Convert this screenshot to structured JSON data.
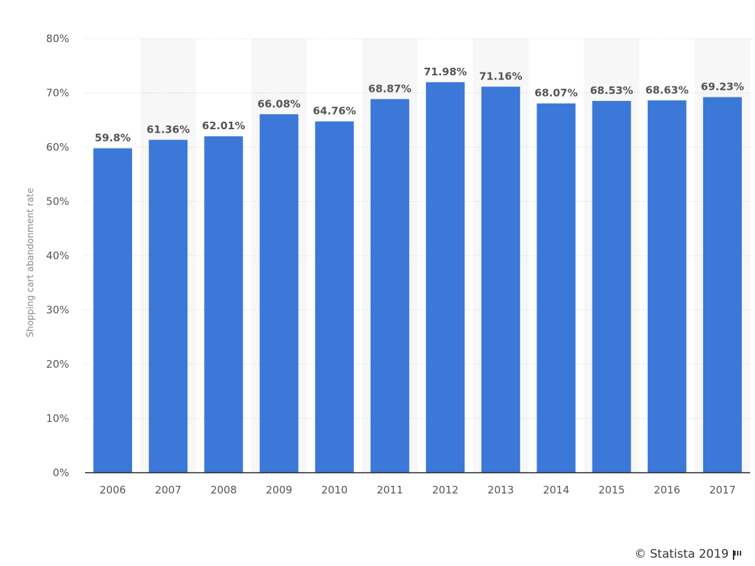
{
  "chart_data": {
    "type": "bar",
    "categories": [
      "2006",
      "2007",
      "2008",
      "2009",
      "2010",
      "2011",
      "2012",
      "2013",
      "2014",
      "2015",
      "2016",
      "2017"
    ],
    "values": [
      59.8,
      61.36,
      62.01,
      66.08,
      64.76,
      68.87,
      71.98,
      71.16,
      68.07,
      68.53,
      68.63,
      69.23
    ],
    "value_labels": [
      "59.8%",
      "61.36%",
      "62.01%",
      "66.08%",
      "64.76%",
      "68.87%",
      "71.98%",
      "71.16%",
      "68.07%",
      "68.53%",
      "68.63%",
      "69.23%"
    ],
    "ylabel": "Shopping cart abandonment rate",
    "xlabel": "",
    "ylim": [
      0,
      80
    ],
    "yticks": [
      0,
      10,
      20,
      30,
      40,
      50,
      60,
      70,
      80
    ],
    "ytick_labels": [
      "0%",
      "10%",
      "20%",
      "30%",
      "40%",
      "50%",
      "60%",
      "70%",
      "80%"
    ],
    "grid": true,
    "bar_color": "#3c78d8"
  },
  "footer": {
    "credit": "© Statista 2019"
  }
}
